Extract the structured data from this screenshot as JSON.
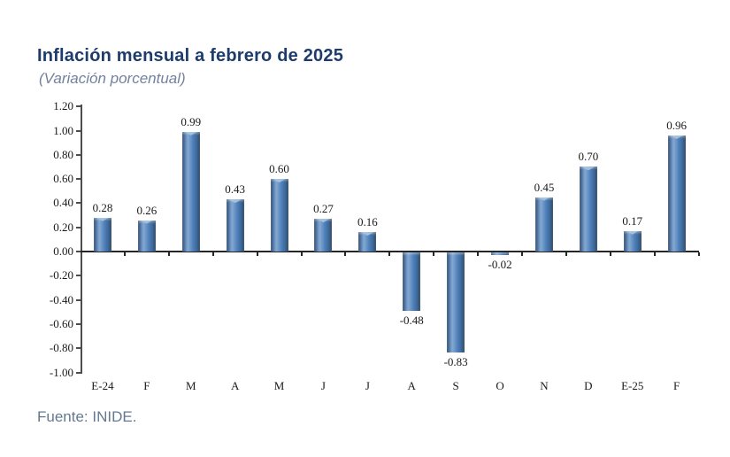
{
  "header": {
    "title": "Inflación mensual a febrero de 2025",
    "subtitle": "(Variación porcentual)"
  },
  "footer": {
    "source": "Fuente: INIDE."
  },
  "chart_data": {
    "type": "bar",
    "title": "Inflación mensual a febrero de 2025",
    "subtitle": "(Variación porcentual)",
    "categories": [
      "E-24",
      "F",
      "M",
      "A",
      "M",
      "J",
      "J",
      "A",
      "S",
      "O",
      "N",
      "D",
      "E-25",
      "F"
    ],
    "values": [
      0.28,
      0.26,
      0.99,
      0.43,
      0.6,
      0.27,
      0.16,
      -0.48,
      -0.83,
      -0.02,
      0.45,
      0.7,
      0.17,
      0.96
    ],
    "data_labels": [
      "0.28",
      "0.26",
      "0.99",
      "0.43",
      "0.60",
      "0.27",
      "0.16",
      "-0.48",
      "-0.83",
      "-0.02",
      "0.45",
      "0.70",
      "0.17",
      "0.96"
    ],
    "ylim": [
      -1.0,
      1.2
    ],
    "yticks": [
      "1.20",
      "1.00",
      "0.80",
      "0.60",
      "0.40",
      "0.20",
      "0.00",
      "-0.20",
      "-0.40",
      "-0.60",
      "-0.80",
      "-1.00"
    ],
    "ytick_values": [
      1.2,
      1.0,
      0.8,
      0.6,
      0.4,
      0.2,
      0.0,
      -0.2,
      -0.4,
      -0.6,
      -0.8,
      -1.0
    ],
    "xlabel": "",
    "ylabel": "",
    "grid": "off",
    "legend": "none",
    "bar_color": "#4f81bd",
    "bar_edge_color": "#2b4a6f",
    "source": "Fuente: INIDE."
  }
}
